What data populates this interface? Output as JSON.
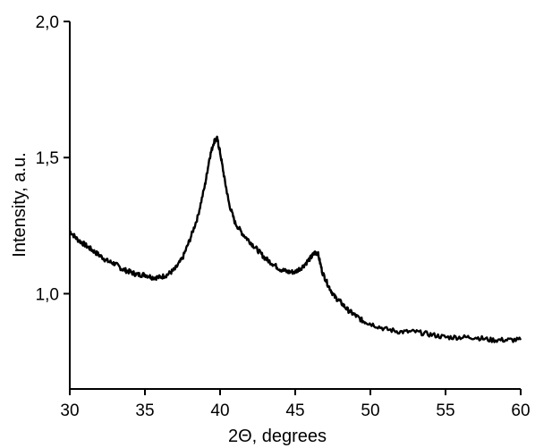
{
  "chart_data": {
    "type": "line",
    "title": "",
    "xlabel": "2Θ, degrees",
    "ylabel": "Intensity, a.u.",
    "xlim": [
      30,
      60
    ],
    "ylim": [
      0.65,
      2.0
    ],
    "x_ticks": [
      30,
      35,
      40,
      45,
      50,
      55,
      60
    ],
    "x_tick_labels": [
      "30",
      "35",
      "40",
      "45",
      "50",
      "55",
      "60"
    ],
    "y_ticks": [
      1.0,
      1.5,
      2.0
    ],
    "y_tick_labels": [
      "1,0",
      "1,5",
      "2,0"
    ],
    "grid": false,
    "series": [
      {
        "color": "#000000",
        "x": [
          30.0,
          30.5,
          31.0,
          31.5,
          32.0,
          32.5,
          33.0,
          33.5,
          34.0,
          34.5,
          35.0,
          35.5,
          36.0,
          36.5,
          37.0,
          37.5,
          38.0,
          38.5,
          39.0,
          39.3,
          39.6,
          39.8,
          40.0,
          40.3,
          40.6,
          41.0,
          41.5,
          42.0,
          42.5,
          43.0,
          43.5,
          44.0,
          44.5,
          45.0,
          45.5,
          46.0,
          46.3,
          46.5,
          46.8,
          47.2,
          47.6,
          48.0,
          48.5,
          49.0,
          49.5,
          50.0,
          51.0,
          52.0,
          53.0,
          54.0,
          55.0,
          56.0,
          57.0,
          58.0,
          59.0,
          60.0
        ],
        "y": [
          1.23,
          1.2,
          1.18,
          1.16,
          1.14,
          1.12,
          1.11,
          1.09,
          1.08,
          1.07,
          1.07,
          1.06,
          1.06,
          1.07,
          1.09,
          1.13,
          1.2,
          1.28,
          1.4,
          1.5,
          1.56,
          1.57,
          1.52,
          1.42,
          1.33,
          1.26,
          1.22,
          1.19,
          1.16,
          1.13,
          1.11,
          1.09,
          1.08,
          1.08,
          1.1,
          1.13,
          1.15,
          1.15,
          1.08,
          1.03,
          0.99,
          0.97,
          0.94,
          0.92,
          0.9,
          0.89,
          0.87,
          0.86,
          0.86,
          0.85,
          0.84,
          0.84,
          0.84,
          0.83,
          0.83,
          0.83
        ]
      }
    ]
  }
}
